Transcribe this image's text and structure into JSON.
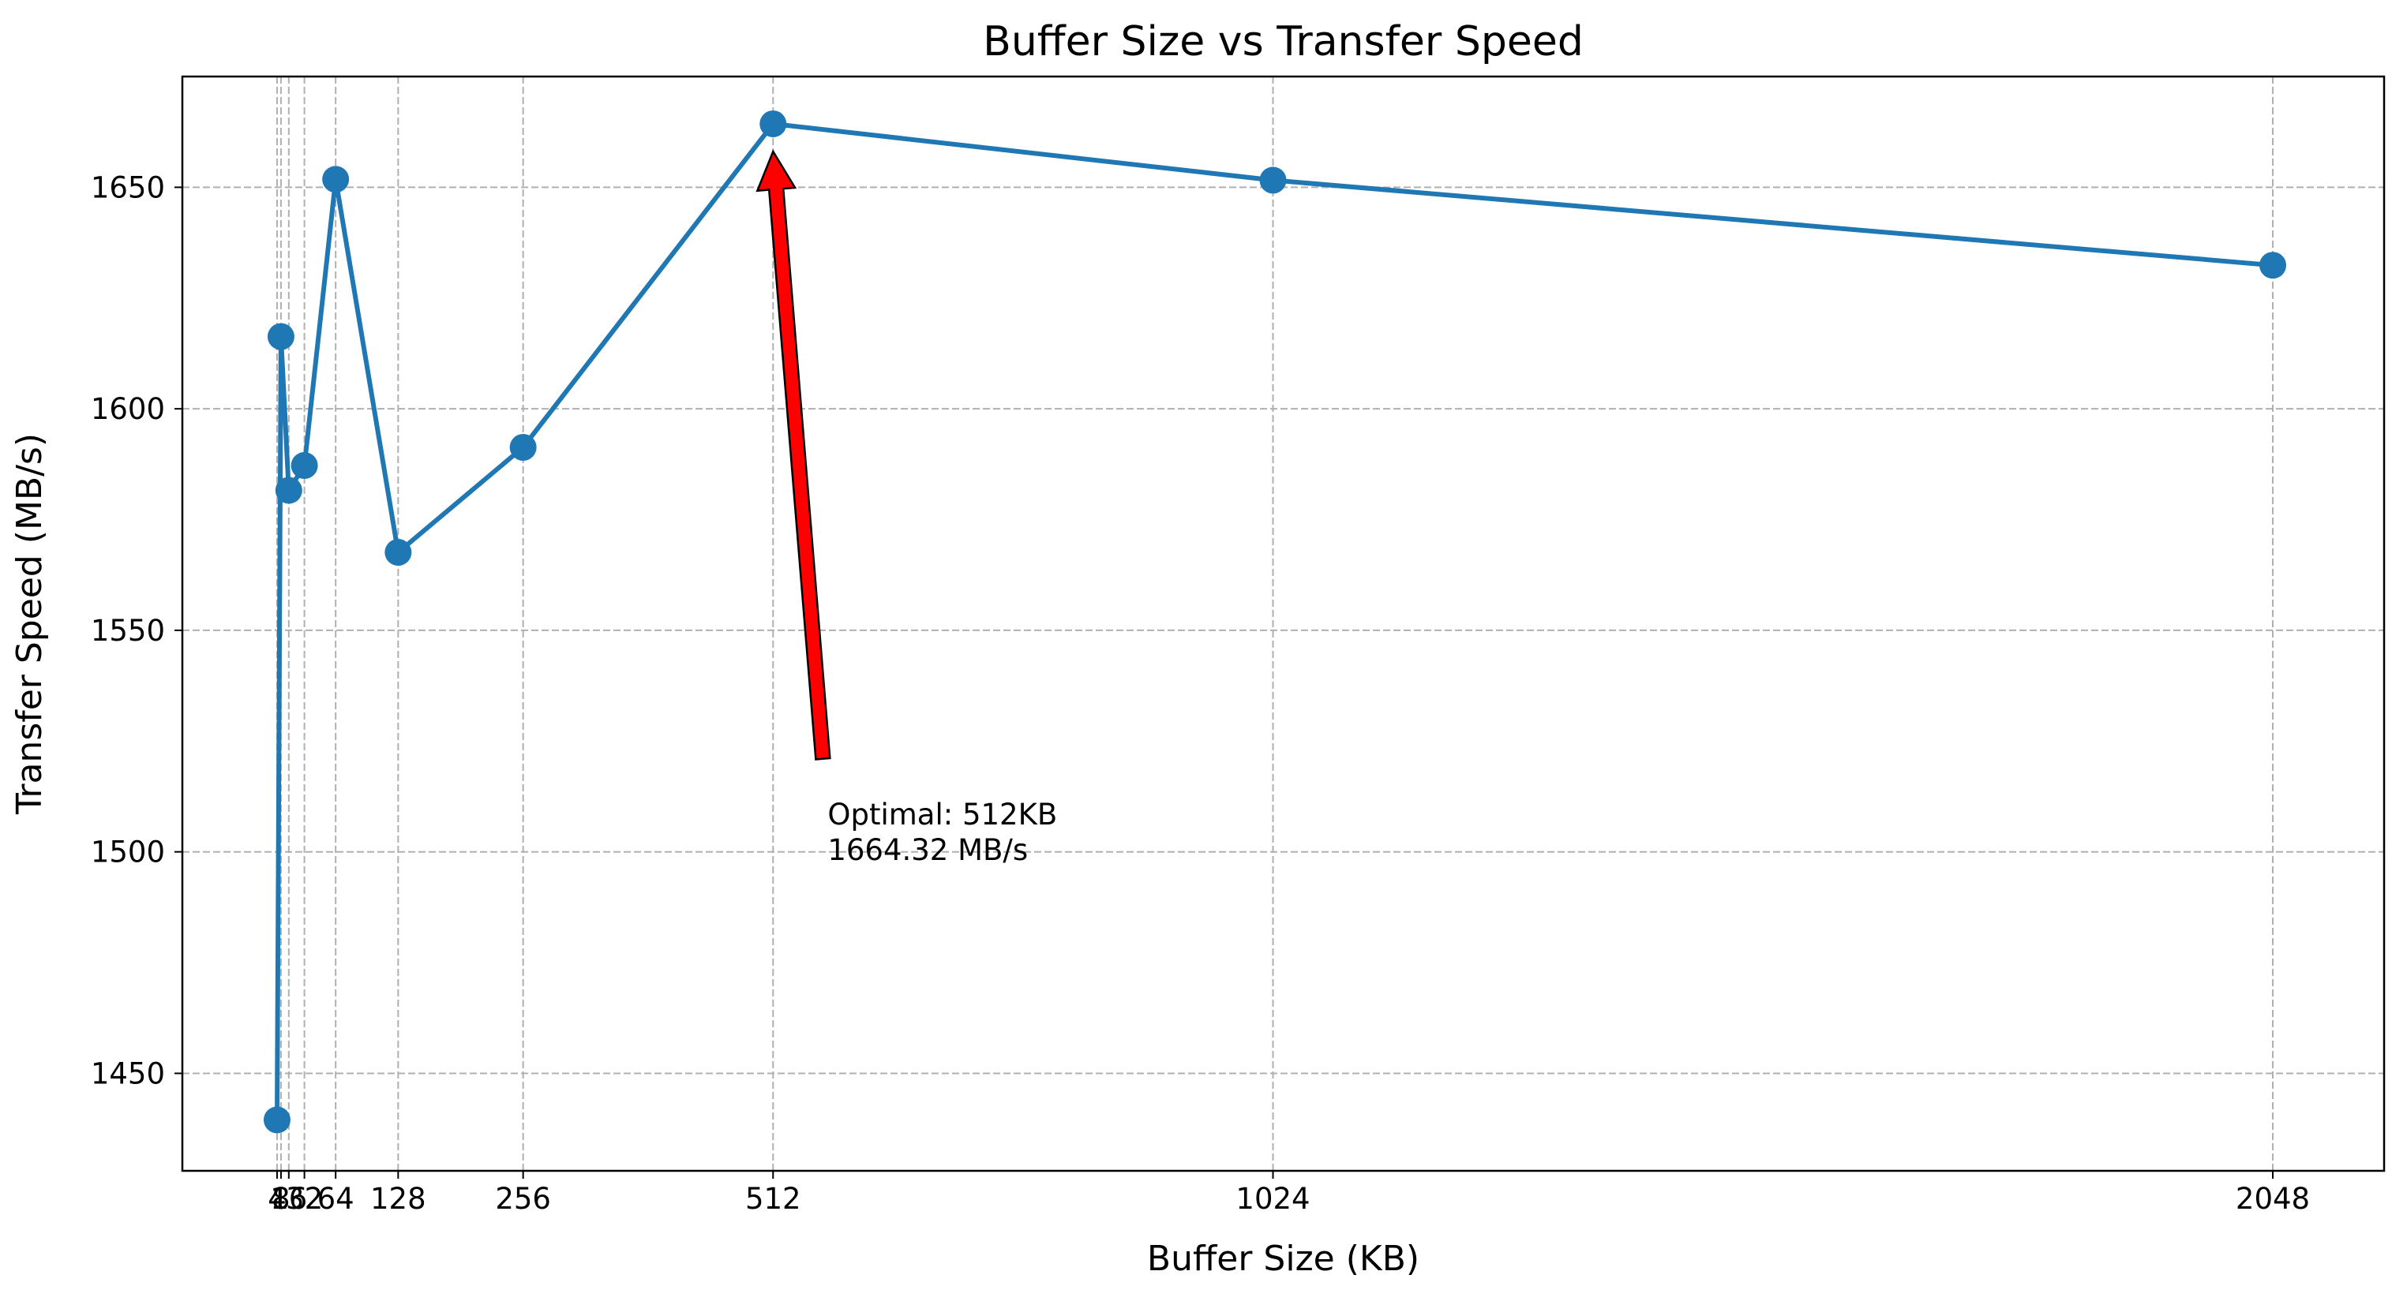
{
  "chart_data": {
    "type": "line",
    "title": "Buffer Size vs Transfer Speed",
    "xlabel": "Buffer Size (KB)",
    "ylabel": "Transfer Speed (MB/s)",
    "xlim": [
      -93,
      2162
    ],
    "ylim": [
      1428,
      1675
    ],
    "x_ticks": [
      4,
      8,
      16,
      32,
      64,
      128,
      256,
      512,
      1024,
      2048
    ],
    "x_tick_labels": [
      "4",
      "8",
      "16",
      "32",
      "64",
      "128",
      "256",
      "512",
      "1024",
      "2048"
    ],
    "y_ticks": [
      1450,
      1500,
      1550,
      1600,
      1650
    ],
    "y_tick_labels": [
      "1450",
      "1500",
      "1550",
      "1600",
      "1650"
    ],
    "grid": true,
    "series": [
      {
        "color": "#1f77b4",
        "points": [
          {
            "x": 4,
            "y": 1439.5
          },
          {
            "x": 8,
            "y": 1616.3
          },
          {
            "x": 16,
            "y": 1581.6
          },
          {
            "x": 32,
            "y": 1587.2
          },
          {
            "x": 64,
            "y": 1651.8
          },
          {
            "x": 128,
            "y": 1567.6
          },
          {
            "x": 256,
            "y": 1591.3
          },
          {
            "x": 512,
            "y": 1664.32
          },
          {
            "x": 1024,
            "y": 1651.6
          },
          {
            "x": 2048,
            "y": 1632.4
          }
        ]
      }
    ],
    "annotation": {
      "line1": "Optimal: 512KB",
      "line2": "1664.32 MB/s",
      "target": {
        "x": 512,
        "y": 1664.32
      },
      "text_anchor": {
        "x": 563,
        "y": 1521
      },
      "arrow_color": "#ff0000"
    }
  }
}
